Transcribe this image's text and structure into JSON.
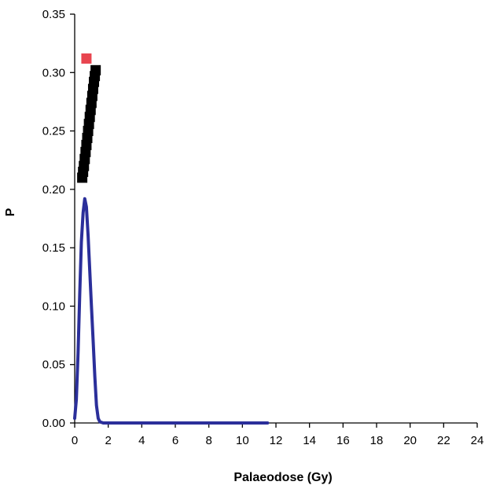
{
  "chart_data": {
    "type": "scatter",
    "title": "",
    "xlabel": "Palaeodose (Gy)",
    "ylabel": "P",
    "xlim": [
      0,
      24
    ],
    "ylim": [
      0,
      0.35
    ],
    "x_ticks": [
      0,
      2,
      4,
      6,
      8,
      10,
      12,
      14,
      16,
      18,
      20,
      22,
      24
    ],
    "y_ticks": [
      0.0,
      0.05,
      0.1,
      0.15,
      0.2,
      0.25,
      0.3,
      0.35
    ],
    "y_tick_labels": [
      "0.00",
      "0.05",
      "0.10",
      "0.15",
      "0.20",
      "0.25",
      "0.30",
      "0.35"
    ],
    "x_tick_labels": [
      "0",
      "2",
      "4",
      "6",
      "8",
      "10",
      "12",
      "14",
      "16",
      "18",
      "20",
      "22",
      "24"
    ],
    "grid": false,
    "legend": "none",
    "series": [
      {
        "kind": "line",
        "color": "#2b2f9a",
        "x": [
          0.0,
          0.1,
          0.2,
          0.3,
          0.4,
          0.5,
          0.6,
          0.7,
          0.8,
          0.9,
          1.0,
          1.1,
          1.2,
          1.3,
          1.4,
          1.5,
          1.7,
          2.0,
          3.0,
          5.0,
          7.0,
          9.0,
          11.5
        ],
        "y": [
          0.004,
          0.02,
          0.06,
          0.11,
          0.155,
          0.18,
          0.192,
          0.185,
          0.16,
          0.13,
          0.1,
          0.07,
          0.04,
          0.015,
          0.004,
          0.001,
          0.0,
          0.0,
          0.0,
          0.0,
          0.0,
          0.0,
          0.0
        ]
      },
      {
        "kind": "markers",
        "color": "#000000",
        "x": [
          0.45,
          0.5,
          0.55,
          0.6,
          0.65,
          0.7,
          0.75,
          0.8,
          0.85,
          0.9,
          0.95,
          1.0,
          1.05,
          1.1,
          1.15,
          1.2,
          1.25
        ],
        "y": [
          0.21,
          0.215,
          0.22,
          0.226,
          0.232,
          0.238,
          0.244,
          0.25,
          0.256,
          0.262,
          0.268,
          0.274,
          0.28,
          0.286,
          0.292,
          0.297,
          0.302
        ]
      },
      {
        "kind": "markers",
        "color": "#e8454f",
        "x": [
          0.7
        ],
        "y": [
          0.312
        ]
      }
    ]
  }
}
